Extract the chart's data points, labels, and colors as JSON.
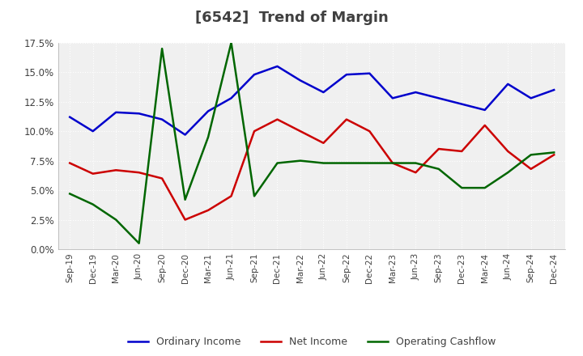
{
  "title": "[6542]  Trend of Margin",
  "title_color": "#404040",
  "background_color": "#ffffff",
  "plot_bg_color": "#f0f0f0",
  "grid_color": "#ffffff",
  "x_labels": [
    "Sep-19",
    "Dec-19",
    "Mar-20",
    "Jun-20",
    "Sep-20",
    "Dec-20",
    "Mar-21",
    "Jun-21",
    "Sep-21",
    "Dec-21",
    "Mar-22",
    "Jun-22",
    "Sep-22",
    "Dec-22",
    "Mar-23",
    "Jun-23",
    "Sep-23",
    "Dec-23",
    "Mar-24",
    "Jun-24",
    "Sep-24",
    "Dec-24"
  ],
  "ordinary_income": [
    0.112,
    0.1,
    0.116,
    0.115,
    0.11,
    0.097,
    0.117,
    0.128,
    0.148,
    0.155,
    0.143,
    0.133,
    0.148,
    0.149,
    0.128,
    0.133,
    0.128,
    0.123,
    0.118,
    0.14,
    0.128,
    0.135
  ],
  "net_income": [
    0.073,
    0.064,
    0.067,
    0.065,
    0.06,
    0.025,
    0.033,
    0.045,
    0.1,
    0.11,
    0.1,
    0.09,
    0.11,
    0.1,
    0.073,
    0.065,
    0.085,
    0.083,
    0.105,
    0.083,
    0.068,
    0.08
  ],
  "operating_cashflow": [
    0.047,
    0.038,
    0.025,
    0.005,
    0.17,
    0.042,
    0.095,
    0.175,
    0.045,
    0.073,
    0.075,
    0.073,
    0.073,
    0.073,
    0.073,
    0.073,
    0.068,
    0.052,
    0.052,
    0.065,
    0.08,
    0.082
  ],
  "ylim": [
    0.0,
    0.175
  ],
  "yticks": [
    0.0,
    0.025,
    0.05,
    0.075,
    0.1,
    0.125,
    0.15,
    0.175
  ],
  "line_colors": {
    "ordinary_income": "#0000cc",
    "net_income": "#cc0000",
    "operating_cashflow": "#006600"
  },
  "line_width": 1.8,
  "legend_labels": [
    "Ordinary Income",
    "Net Income",
    "Operating Cashflow"
  ]
}
